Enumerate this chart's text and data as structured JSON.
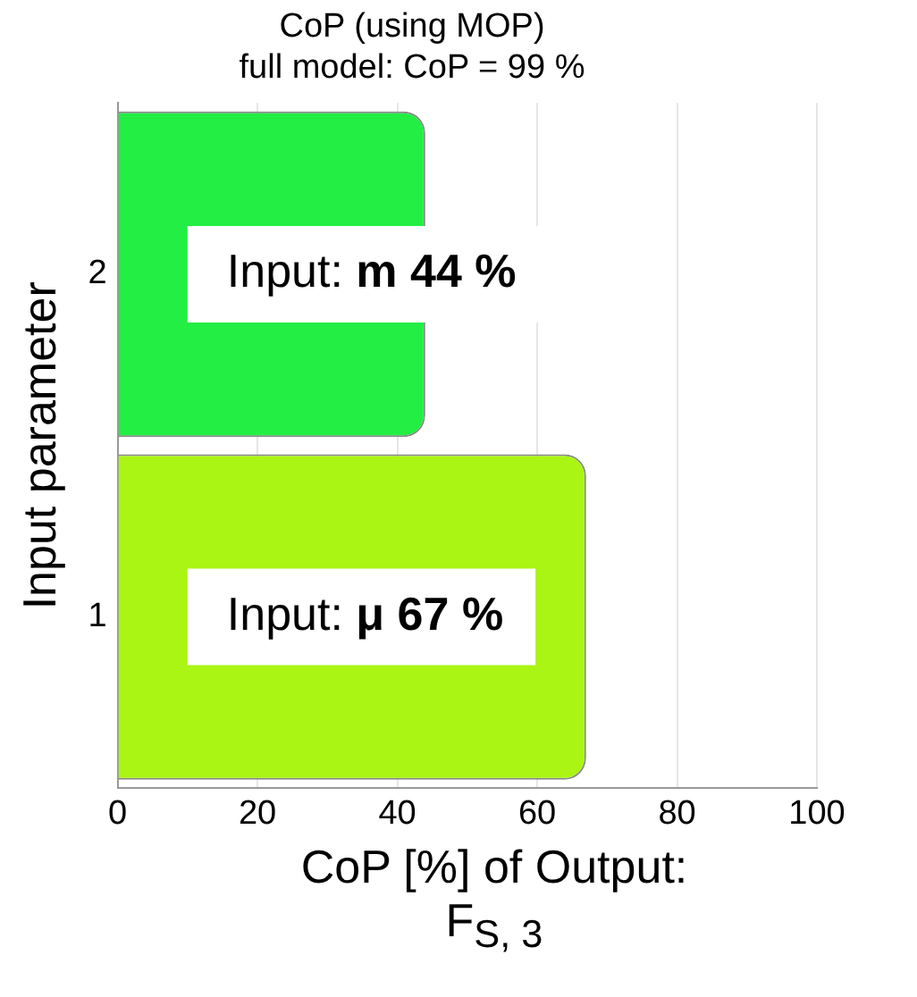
{
  "chart_data": {
    "type": "bar",
    "orientation": "horizontal",
    "title": "CoP (using MOP)",
    "subtitle": "full model: CoP = 99 %",
    "xlabel": "CoP [%] of Output:\nF$_{S, 3}$",
    "ylabel": "Input parameter",
    "categories": [
      "2",
      "1"
    ],
    "values": [
      44,
      67
    ],
    "colors": [
      "#22ee44",
      "#aaf514"
    ],
    "value_labels": [
      "Input: m 44 %",
      "Input: μ 67 %"
    ],
    "xlim": [
      0,
      100
    ],
    "xticks": [
      0,
      20,
      40,
      60,
      80,
      100
    ],
    "grid": "x",
    "legend": false
  }
}
